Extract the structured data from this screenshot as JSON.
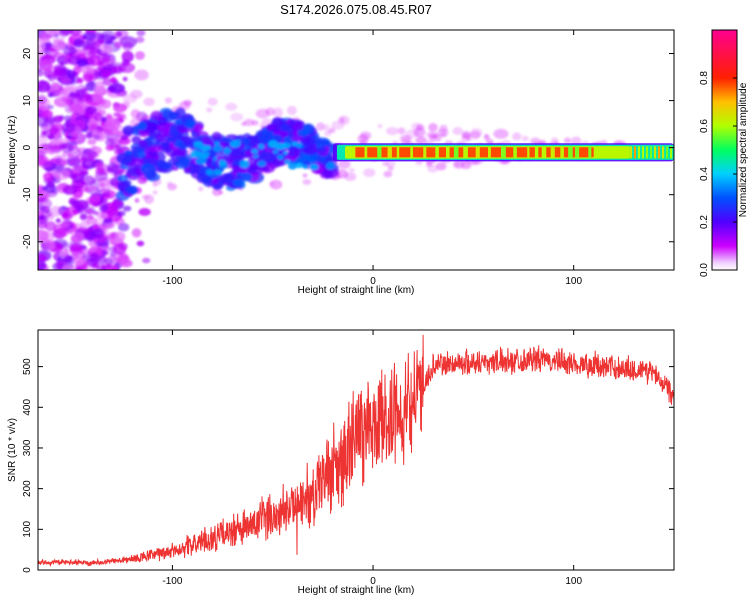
{
  "title": "S174.2026.075.08.45.R07",
  "chart_data": [
    {
      "type": "heatmap",
      "name": "spectrogram",
      "xlabel": "Height of straight line (km)",
      "ylabel": "Frequency (Hz)",
      "xlim": [
        -167,
        150
      ],
      "ylim": [
        -26,
        25
      ],
      "xticks": [
        "-100",
        "0",
        "100"
      ],
      "xtick_values": [
        -100,
        0,
        100
      ],
      "yticks": [
        "-20",
        "-10",
        "0",
        "10",
        "20"
      ],
      "ytick_values": [
        -20,
        -10,
        0,
        10,
        20
      ],
      "colorbar": {
        "label": "Normalized spectral amplitude",
        "range": [
          0,
          1
        ],
        "ticks": [
          "0.0",
          "0.2",
          "0.4",
          "0.6",
          "0.8"
        ],
        "tick_values": [
          0,
          0.2,
          0.4,
          0.6,
          0.8
        ],
        "colors": [
          "#ffffff",
          "#cc00ff",
          "#5000ff",
          "#0050ff",
          "#00d0ff",
          "#00ff60",
          "#b0ff00",
          "#ffc000",
          "#ff2000",
          "#ff0090"
        ]
      },
      "regions": [
        {
          "x": [
            -167,
            -125
          ],
          "y": [
            -26,
            25
          ],
          "description": "scattered weak noise",
          "amplitude": [
            0.05,
            0.2
          ]
        },
        {
          "x": [
            -125,
            -20
          ],
          "y": [
            -9,
            7
          ],
          "description": "blue/purple wandering signal",
          "amplitude": [
            0.15,
            0.35
          ]
        },
        {
          "x": [
            -20,
            150
          ],
          "y": [
            -2.5,
            0.5
          ],
          "description": "strong narrow carrier",
          "amplitude": [
            0.6,
            1.0
          ]
        }
      ]
    },
    {
      "type": "line",
      "name": "snr",
      "xlabel": "Height of straight line (km)",
      "ylabel": "SNR (10 * v/v)",
      "xlim": [
        -167,
        150
      ],
      "ylim": [
        0,
        590
      ],
      "xticks": [
        "-100",
        "0",
        "100"
      ],
      "xtick_values": [
        -100,
        0,
        100
      ],
      "yticks": [
        "0",
        "100",
        "200",
        "300",
        "400",
        "500"
      ],
      "ytick_values": [
        0,
        100,
        200,
        300,
        400,
        500
      ],
      "color": "#ee3333",
      "envelope": {
        "x": [
          -167,
          -140,
          -120,
          -100,
          -80,
          -60,
          -50,
          -40,
          -30,
          -25,
          -20,
          -15,
          -10,
          -5,
          0,
          10,
          20,
          25,
          30,
          40,
          60,
          80,
          100,
          120,
          140,
          150
        ],
        "y": [
          18,
          18,
          25,
          45,
          75,
          105,
          130,
          145,
          165,
          210,
          230,
          260,
          300,
          330,
          345,
          365,
          400,
          450,
          500,
          505,
          510,
          515,
          505,
          495,
          485,
          430
        ]
      }
    }
  ]
}
